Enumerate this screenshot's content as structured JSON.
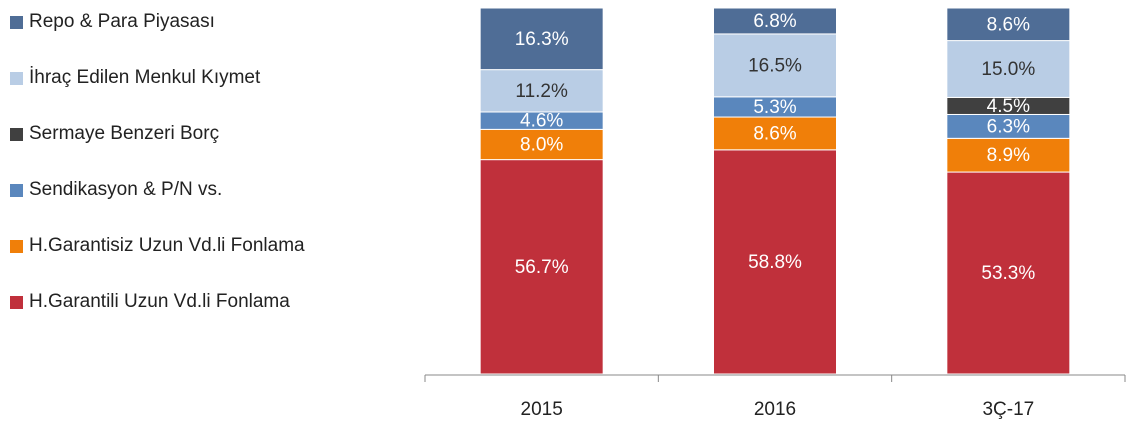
{
  "chart_data": {
    "type": "stacked_bar_percent",
    "categories": [
      "2015",
      "2016",
      "3Ç-17"
    ],
    "series": [
      {
        "name": "H.Garantili Uzun Vd.li Fonlama",
        "color": "#c0303b",
        "values": [
          56.7,
          58.8,
          53.3
        ],
        "value_labels": [
          "56.7%",
          "58.8%",
          "53.3%"
        ]
      },
      {
        "name": "H.Garantisiz Uzun Vd.li Fonlama",
        "color": "#f07f09",
        "values": [
          8.0,
          8.6,
          8.9
        ],
        "value_labels": [
          "8.0%",
          "8.6%",
          "8.9%"
        ]
      },
      {
        "name": "Sendikasyon & P/N vs.",
        "color": "#5a87bd",
        "values": [
          4.6,
          5.3,
          6.3
        ],
        "value_labels": [
          "4.6%",
          "5.3%",
          "6.3%"
        ]
      },
      {
        "name": "Sermaye Benzeri Borç",
        "color": "#404040",
        "values": [
          null,
          null,
          4.5
        ],
        "value_labels": [
          null,
          null,
          "4.5%"
        ]
      },
      {
        "name": "İhraç Edilen Menkul Kıymet",
        "color": "#b9cde5",
        "values": [
          11.2,
          16.5,
          15.0
        ],
        "value_labels": [
          "11.2%",
          "16.5%",
          "15.0%"
        ]
      },
      {
        "name": "Repo & Para Piyasası",
        "color": "#4f6d96",
        "values": [
          16.3,
          6.8,
          8.6
        ],
        "value_labels": [
          "16.3%",
          "6.8%",
          "8.6%"
        ]
      }
    ]
  }
}
